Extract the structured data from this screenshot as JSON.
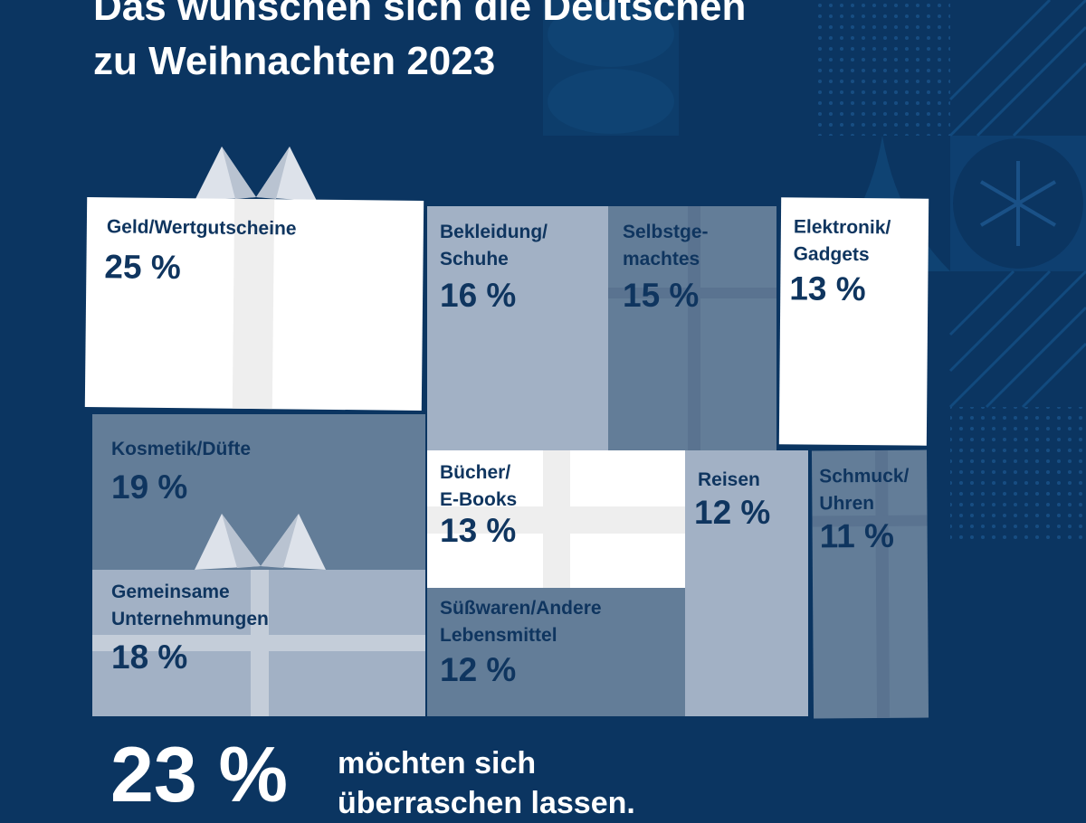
{
  "title_line1": "Das wünschen sich die Deutschen",
  "title_line2": "zu Weihnachten 2023",
  "colors": {
    "background": "#0b3561",
    "white_gift": "#ffffff",
    "light_gift": "#a2b1c5",
    "mid_gift": "#637d98",
    "text": "#0f355f"
  },
  "chart_data": {
    "type": "bar",
    "categories": [
      "Geld/Wertgutscheine",
      "Bekleidung/\nSchuhe",
      "Selbstge-\nmachtes",
      "Elektronik/\nGadgets",
      "Kosmetik/Düfte",
      "Bücher/\nE-Books",
      "Reisen",
      "Schmuck/\nUhren",
      "Gemeinsame\nUnternehmungen",
      "Süßwaren/Andere\nLebensmittel"
    ],
    "values": [
      25,
      16,
      15,
      13,
      19,
      13,
      12,
      11,
      18,
      12
    ],
    "value_labels": [
      "25 %",
      "16 %",
      "15 %",
      "13 %",
      "19 %",
      "13 %",
      "12 %",
      "11 %",
      "18 %",
      "12 %"
    ],
    "unit": "%"
  },
  "footer": {
    "value": "23 %",
    "text_line1": "möchten sich",
    "text_line2": "überraschen lassen."
  }
}
